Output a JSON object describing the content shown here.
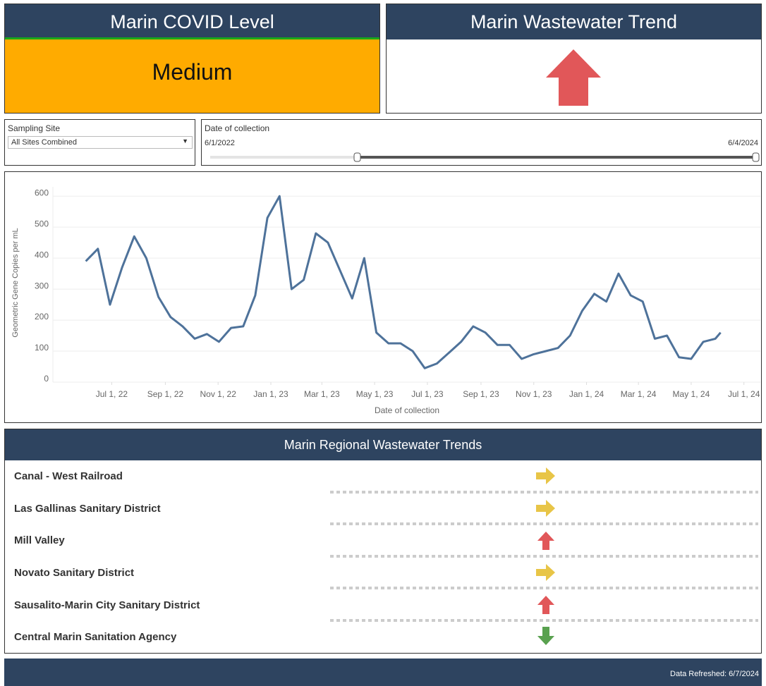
{
  "level_panel": {
    "title": "Marin COVID Level",
    "value": "Medium"
  },
  "trend_panel": {
    "title": "Marin Wastewater Trend"
  },
  "filters": {
    "site_label": "Sampling Site",
    "site_value": "All Sites Combined",
    "date_label": "Date of collection",
    "date_start": "6/1/2022",
    "date_end": "6/4/2024"
  },
  "chart_data": {
    "type": "line",
    "x_label": "Date of collection",
    "y_label": "Geometric Gene Copies per mL",
    "x": [
      "2022-06-01",
      "2022-06-15",
      "2022-06-29",
      "2022-07-13",
      "2022-07-27",
      "2022-08-10",
      "2022-08-24",
      "2022-09-07",
      "2022-09-21",
      "2022-10-05",
      "2022-10-19",
      "2022-11-02",
      "2022-11-16",
      "2022-11-30",
      "2022-12-14",
      "2022-12-28",
      "2023-01-11",
      "2023-01-25",
      "2023-02-08",
      "2023-02-22",
      "2023-03-08",
      "2023-03-22",
      "2023-04-05",
      "2023-04-19",
      "2023-05-03",
      "2023-05-17",
      "2023-05-31",
      "2023-06-14",
      "2023-06-28",
      "2023-07-12",
      "2023-07-26",
      "2023-08-09",
      "2023-08-23",
      "2023-09-06",
      "2023-09-20",
      "2023-10-04",
      "2023-10-18",
      "2023-11-01",
      "2023-11-15",
      "2023-11-29",
      "2023-12-13",
      "2023-12-27",
      "2024-01-10",
      "2024-01-24",
      "2024-02-07",
      "2024-02-21",
      "2024-03-06",
      "2024-03-20",
      "2024-04-03",
      "2024-04-17",
      "2024-05-01",
      "2024-05-15",
      "2024-05-29",
      "2024-06-04"
    ],
    "series": [
      {
        "name": "Geometric Gene Copies per mL",
        "color": "#4e729a",
        "values": [
          390,
          430,
          250,
          370,
          470,
          400,
          275,
          210,
          180,
          140,
          155,
          130,
          175,
          180,
          280,
          530,
          600,
          300,
          330,
          480,
          450,
          360,
          270,
          400,
          160,
          125,
          125,
          100,
          45,
          60,
          95,
          130,
          180,
          160,
          120,
          120,
          75,
          90,
          100,
          110,
          150,
          230,
          285,
          260,
          350,
          280,
          260,
          140,
          150,
          80,
          75,
          130,
          140,
          160
        ]
      }
    ],
    "xlim": [
      "2022-04-24",
      "2024-07-20"
    ],
    "xticks": [
      {
        "value": "2022-07-01",
        "label": "Jul 1, 22"
      },
      {
        "value": "2022-09-01",
        "label": "Sep 1, 22"
      },
      {
        "value": "2022-11-01",
        "label": "Nov 1, 22"
      },
      {
        "value": "2023-01-01",
        "label": "Jan 1, 23"
      },
      {
        "value": "2023-03-01",
        "label": "Mar 1, 23"
      },
      {
        "value": "2023-05-01",
        "label": "May 1, 23"
      },
      {
        "value": "2023-07-01",
        "label": "Jul 1, 23"
      },
      {
        "value": "2023-09-01",
        "label": "Sep 1, 23"
      },
      {
        "value": "2023-11-01",
        "label": "Nov 1, 23"
      },
      {
        "value": "2024-01-01",
        "label": "Jan 1, 24"
      },
      {
        "value": "2024-03-01",
        "label": "Mar 1, 24"
      },
      {
        "value": "2024-05-01",
        "label": "May 1, 24"
      },
      {
        "value": "2024-07-01",
        "label": "Jul 1, 24"
      }
    ],
    "ylim": [
      0,
      630
    ],
    "yticks": [
      0,
      100,
      200,
      300,
      400,
      500,
      600
    ],
    "grid": true
  },
  "regional": {
    "title": "Marin Regional Wastewater Trends",
    "rows": [
      "Canal - West Railroad",
      "Las Gallinas Sanitary District",
      "Mill Valley",
      "Novato Sanitary District",
      "Sausalito-Marin City Sanitary District",
      "Central Marin Sanitation Agency"
    ]
  },
  "footer": {
    "refreshed": "Data Refreshed: 6/7/2024"
  }
}
